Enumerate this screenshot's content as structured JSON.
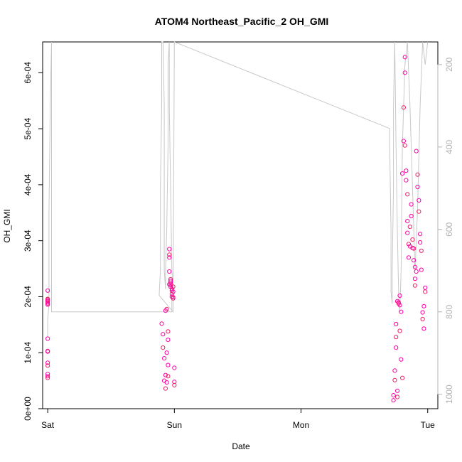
{
  "chart_data": {
    "type": "scatter",
    "title": "ATOM4 Northeast_Pacific_2 OH_GMI",
    "xlabel": "Date",
    "ylabel": "OH_GMI",
    "x_ticks": [
      "Sat",
      "Sun",
      "Mon",
      "Tue"
    ],
    "x_range_days": [
      -0.04,
      3.08
    ],
    "ylim": [
      0,
      0.000655
    ],
    "y_ticks": [
      "0e+00",
      "1e-04",
      "2e-04",
      "3e-04",
      "4e-04",
      "5e-04",
      "6e-04"
    ],
    "y_right_label": "",
    "y_right_ticks": [
      "200",
      "400",
      "600",
      "800",
      "1000"
    ],
    "y2lim": [
      1035,
      145
    ],
    "grid": false,
    "colors": {
      "points": "#ff00aa",
      "points_alt": "#ee2266",
      "pressure_line": "#c8c8c8"
    },
    "series": [
      {
        "name": "",
        "style": "points",
        "x_days": [
          0.0,
          0.0,
          0.0,
          0.0,
          0.0,
          0.0,
          0.0,
          0.0,
          0.0,
          0.0,
          0.0,
          0.0,
          0.0,
          0.0,
          0.0,
          0.0,
          0.9,
          0.91,
          0.91,
          0.92,
          0.92,
          0.93,
          0.93,
          0.93,
          0.94,
          0.94,
          0.94,
          0.95,
          0.95,
          0.95,
          0.95,
          0.96,
          0.96,
          0.96,
          0.96,
          0.96,
          0.97,
          0.97,
          0.97,
          0.97,
          0.97,
          0.98,
          0.98,
          0.98,
          0.98,
          0.99,
          0.99,
          0.99,
          0.99,
          1.0,
          1.0,
          1.0,
          2.73,
          2.73,
          2.74,
          2.74,
          2.75,
          2.75,
          2.75,
          2.76,
          2.76,
          2.76,
          2.77,
          2.77,
          2.78,
          2.78,
          2.78,
          2.79,
          2.79,
          2.8,
          2.8,
          2.81,
          2.81,
          2.82,
          2.82,
          2.82,
          2.83,
          2.83,
          2.84,
          2.84,
          2.84,
          2.85,
          2.85,
          2.86,
          2.86,
          2.87,
          2.87,
          2.88,
          2.88,
          2.89,
          2.89,
          2.9,
          2.9,
          2.9,
          2.91,
          2.91,
          2.92,
          2.92,
          2.93,
          2.93,
          2.94,
          2.94,
          2.95,
          2.95,
          2.96,
          2.96,
          2.97,
          2.97,
          2.98,
          2.98
        ],
        "y": [
          0.000195,
          0.000192,
          0.00019,
          0.000188,
          0.000186,
          0.000211,
          0.000196,
          0.000193,
          0.000125,
          0.000103,
          0.000102,
          8.2e-05,
          7.7e-05,
          6.2e-05,
          5.8e-05,
          5.5e-05,
          0.000152,
          0.000133,
          0.000109,
          9e-05,
          5e-05,
          3.6e-05,
          6e-05,
          0.000175,
          0.000178,
          0.0001,
          4.7e-05,
          5.8e-05,
          7.8e-05,
          0.000123,
          0.000138,
          0.000245,
          0.000285,
          0.000275,
          0.00027,
          0.000222,
          0.000231,
          0.000228,
          0.000225,
          0.000221,
          0.000218,
          0.000211,
          0.000205,
          0.0002,
          0.000214,
          0.000218,
          0.000209,
          0.000199,
          0.000197,
          7.3e-05,
          4.8e-05,
          4.2e-05,
          1.5e-05,
          2.4e-05,
          5.1e-05,
          6.8e-05,
          0.000109,
          0.000128,
          0.000151,
          3.2e-05,
          2.1e-05,
          0.000192,
          0.00019,
          0.000188,
          0.000185,
          0.000202,
          0.000139,
          0.000173,
          8.8e-05,
          5.5e-05,
          0.00042,
          0.000478,
          0.000538,
          0.0006,
          0.000628,
          0.00047,
          0.000425,
          0.000408,
          0.000383,
          0.000335,
          0.000314,
          0.000294,
          0.00027,
          0.00029,
          0.000325,
          0.000365,
          0.000344,
          0.000302,
          0.000287,
          0.000265,
          0.000286,
          0.000253,
          0.000232,
          0.00022,
          0.000245,
          0.00046,
          0.000418,
          0.000396,
          0.000372,
          0.000352,
          0.000312,
          0.000297,
          0.000282,
          0.000248,
          0.000172,
          0.00016,
          0.000143,
          0.000183,
          0.000209,
          0.000216
        ]
      },
      {
        "name": "",
        "style": "line",
        "x_days": [
          0.0,
          0.0,
          0.01,
          0.01,
          0.02,
          0.03,
          0.03,
          0.98,
          0.98,
          0.99,
          0.99,
          0.88,
          0.89,
          0.89,
          0.9,
          0.9,
          0.91,
          0.92,
          0.92,
          0.93,
          0.93,
          0.94,
          0.95,
          0.95,
          0.96,
          0.96,
          0.97,
          0.98,
          0.99,
          1.0,
          2.7,
          2.7,
          2.71,
          2.71,
          2.72,
          2.72,
          2.73,
          2.73,
          2.74,
          2.75,
          2.76,
          2.77,
          2.78,
          2.79,
          2.8,
          2.82,
          2.84,
          2.86,
          2.88,
          2.9,
          2.92,
          2.94,
          2.96,
          2.98,
          3.0
        ],
        "y2": [
          860,
          820,
          780,
          560,
          300,
          145,
          800,
          800,
          760,
          720,
          800,
          760,
          700,
          500,
          300,
          145,
          145,
          300,
          700,
          745,
          700,
          600,
          400,
          200,
          145,
          300,
          500,
          700,
          745,
          145,
          355,
          400,
          600,
          750,
          780,
          700,
          500,
          300,
          145,
          400,
          600,
          750,
          800,
          700,
          400,
          200,
          145,
          300,
          500,
          700,
          550,
          300,
          145,
          200,
          145
        ]
      }
    ]
  }
}
